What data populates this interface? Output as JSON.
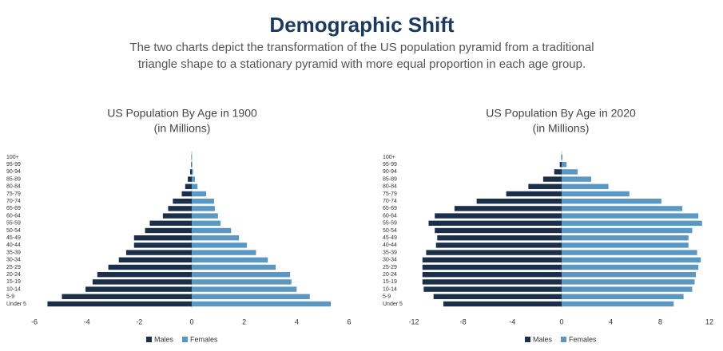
{
  "title": "Demographic Shift",
  "subtitle": [
    "The two charts depict the transformation of the US population pyramid from a traditional",
    "triangle shape to a stationary pyramid with more equal proportion in each age group."
  ],
  "chart_data": [
    {
      "type": "bar",
      "orientation": "horizontal",
      "title": [
        "US Population By Age in 1900",
        "(in Millions)"
      ],
      "categories": [
        "100+",
        "95-99",
        "90-94",
        "85-89",
        "80-84",
        "75-79",
        "70-74",
        "65-69",
        "60-64",
        "55-59",
        "50-54",
        "45-49",
        "40-44",
        "35-39",
        "30-34",
        "25-29",
        "20-24",
        "15-19",
        "10-14",
        "5-9",
        "Under 5"
      ],
      "series": [
        {
          "name": "Males",
          "color": "#1b2f4a",
          "values": [
            -0.01,
            -0.02,
            -0.06,
            -0.15,
            -0.25,
            -0.38,
            -0.72,
            -0.9,
            -1.1,
            -1.6,
            -1.78,
            -2.2,
            -2.2,
            -2.5,
            -2.78,
            -3.18,
            -3.6,
            -3.78,
            -4.05,
            -4.95,
            -5.5
          ]
        },
        {
          "name": "Females",
          "color": "#5b97c3",
          "values": [
            0.01,
            0.02,
            0.05,
            0.12,
            0.22,
            0.55,
            0.85,
            0.88,
            1.0,
            1.1,
            1.5,
            1.8,
            2.1,
            2.45,
            2.9,
            3.2,
            3.75,
            3.8,
            4.0,
            4.5,
            5.3
          ]
        }
      ],
      "xlim": [
        -6,
        6
      ],
      "xticks": [
        -6,
        -4,
        -2,
        0,
        2,
        4,
        6
      ],
      "legend": "bottom"
    },
    {
      "type": "bar",
      "orientation": "horizontal",
      "title": [
        "US Population By Age in 2020",
        "(in Millions)"
      ],
      "categories": [
        "100+",
        "95-99",
        "90-94",
        "85-89",
        "80-84",
        "75-79",
        "70-74",
        "65-69",
        "60-64",
        "55-59",
        "50-54",
        "45-49",
        "40-44",
        "35-39",
        "30-34",
        "25-29",
        "20-24",
        "15-19",
        "10-14",
        "5-9",
        "Under 5"
      ],
      "series": [
        {
          "name": "Males",
          "color": "#1b2f4a",
          "values": [
            -0.02,
            -0.15,
            -0.6,
            -1.5,
            -2.7,
            -4.5,
            -6.9,
            -8.7,
            -10.3,
            -10.8,
            -10.3,
            -10.1,
            -10.2,
            -11.0,
            -11.3,
            -11.3,
            -11.3,
            -11.3,
            -11.2,
            -10.4,
            -9.6
          ]
        },
        {
          "name": "Females",
          "color": "#5b97c3",
          "values": [
            0.07,
            0.4,
            1.3,
            2.4,
            3.8,
            5.5,
            8.1,
            9.8,
            11.1,
            11.4,
            10.6,
            10.3,
            10.3,
            11.0,
            11.3,
            11.1,
            10.9,
            10.8,
            10.6,
            9.9,
            9.1
          ]
        }
      ],
      "xlim": [
        -12,
        12
      ],
      "xticks": [
        -12,
        -8,
        -4,
        0,
        4,
        8,
        12
      ],
      "legend": "bottom"
    }
  ]
}
